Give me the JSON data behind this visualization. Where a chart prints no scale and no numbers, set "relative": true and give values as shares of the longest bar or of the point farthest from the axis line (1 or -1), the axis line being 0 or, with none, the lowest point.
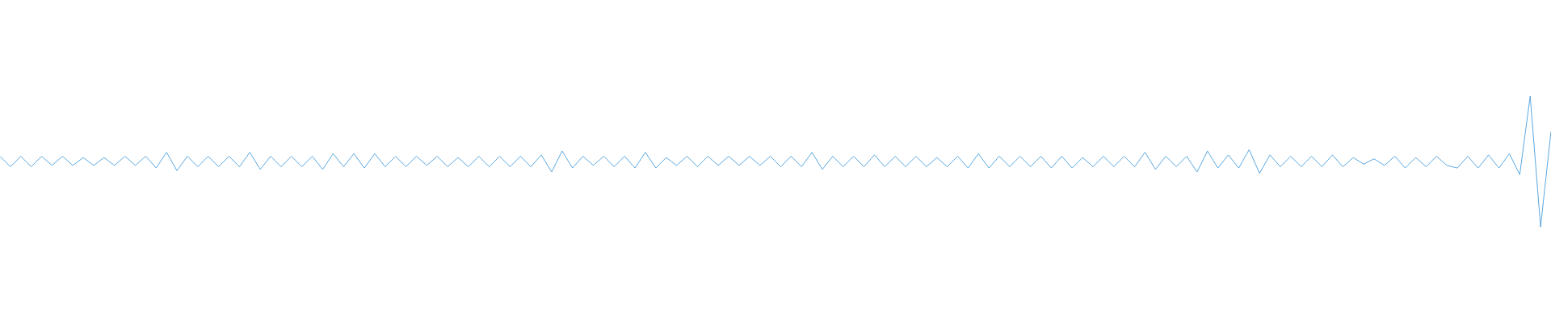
{
  "chart_data": {
    "type": "line",
    "relative": true,
    "marker": "none",
    "color": "#5ba8e0",
    "categories": [
      null,
      null,
      null,
      null,
      null,
      null,
      null,
      null,
      null,
      null,
      null,
      null,
      null,
      null,
      null,
      null,
      null,
      null,
      null,
      null,
      null,
      null,
      null,
      null,
      null,
      null,
      null,
      null,
      null,
      null,
      null,
      null,
      null,
      null,
      null,
      null,
      null,
      null,
      null,
      null,
      null,
      null,
      null,
      null,
      null,
      null,
      null,
      null,
      null,
      null,
      null,
      null,
      null,
      null,
      null,
      null,
      null,
      null,
      null,
      null,
      null,
      null,
      null,
      null,
      null,
      null,
      null,
      null,
      null,
      null,
      null,
      null,
      null,
      null,
      null,
      null,
      null,
      null,
      null,
      null,
      null,
      null,
      null,
      null,
      null,
      null,
      null,
      null,
      null,
      null,
      null,
      null,
      null,
      null,
      null,
      null,
      null,
      null,
      null,
      null,
      null,
      null,
      null,
      null,
      null,
      null,
      null,
      null,
      null,
      null,
      null,
      null,
      null,
      null,
      null,
      null,
      null,
      null,
      null,
      null,
      null,
      null,
      null,
      null,
      null,
      null,
      null,
      null,
      null,
      null,
      null,
      null,
      null,
      null,
      null,
      null,
      null,
      null,
      null,
      null,
      null,
      null,
      null,
      null,
      null,
      null,
      null,
      null,
      null,
      null
    ],
    "values": [
      0.54,
      0.46,
      0.54,
      0.46,
      0.54,
      0.47,
      0.54,
      0.47,
      0.53,
      0.47,
      0.53,
      0.47,
      0.54,
      0.47,
      0.54,
      0.45,
      0.57,
      0.43,
      0.54,
      0.46,
      0.54,
      0.46,
      0.54,
      0.46,
      0.57,
      0.44,
      0.54,
      0.46,
      0.54,
      0.46,
      0.54,
      0.44,
      0.56,
      0.46,
      0.56,
      0.45,
      0.56,
      0.46,
      0.54,
      0.46,
      0.54,
      0.47,
      0.54,
      0.46,
      0.53,
      0.46,
      0.54,
      0.46,
      0.54,
      0.46,
      0.54,
      0.46,
      0.55,
      0.42,
      0.58,
      0.45,
      0.54,
      0.47,
      0.54,
      0.46,
      0.54,
      0.45,
      0.57,
      0.45,
      0.53,
      0.47,
      0.54,
      0.46,
      0.54,
      0.47,
      0.54,
      0.47,
      0.54,
      0.47,
      0.54,
      0.46,
      0.54,
      0.46,
      0.57,
      0.44,
      0.54,
      0.46,
      0.54,
      0.46,
      0.55,
      0.46,
      0.54,
      0.46,
      0.54,
      0.46,
      0.53,
      0.46,
      0.54,
      0.45,
      0.56,
      0.45,
      0.54,
      0.46,
      0.54,
      0.46,
      0.54,
      0.45,
      0.54,
      0.45,
      0.53,
      0.46,
      0.54,
      0.46,
      0.54,
      0.46,
      0.57,
      0.44,
      0.54,
      0.46,
      0.54,
      0.42,
      0.58,
      0.45,
      0.55,
      0.45,
      0.59,
      0.41,
      0.55,
      0.46,
      0.54,
      0.46,
      0.54,
      0.46,
      0.55,
      0.46,
      0.53,
      0.48,
      0.52,
      0.47,
      0.54,
      0.45,
      0.53,
      0.46,
      0.54,
      0.47,
      0.45,
      0.54,
      0.45,
      0.55,
      0.45,
      0.56,
      0.4,
      1.0,
      0.0,
      0.73
    ]
  }
}
